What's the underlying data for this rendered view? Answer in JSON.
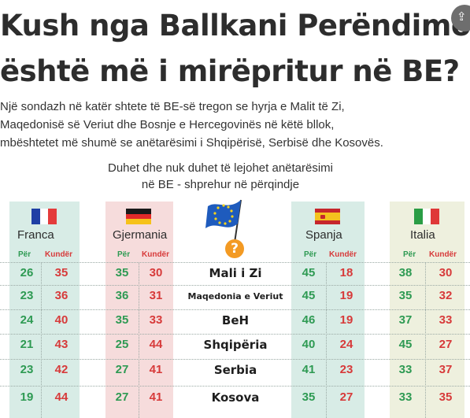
{
  "title": {
    "line1": "Kush nga Ballkani Perëndimor",
    "line2": "është më i mirëpritur në BE?"
  },
  "subtitle": {
    "line1": "Një sondazh në katër shtete të BE-së tregon se hyrja e Malit të Zi,",
    "line2": "Maqedonisë së Veriut dhe Bosnje e Hercegovinës në këtë bllok,",
    "line3": "mbështetet më shumë se anëtarësimi i Shqipërisë, Serbisë dhe Kosovës."
  },
  "chart_data": {
    "type": "table",
    "title": "Duhet dhe nuk duhet të lejohet anëtarësimi",
    "subtitle": "në BE - shprehur në përqindje",
    "column_headers": {
      "for": "Për",
      "against": "Kundër"
    },
    "countries": [
      "Franca",
      "Gjermania",
      "Spanja",
      "Italia"
    ],
    "rows": [
      {
        "label": "Mali i Zi",
        "Franca": [
          26,
          35
        ],
        "Gjermania": [
          35,
          30
        ],
        "Spanja": [
          45,
          18
        ],
        "Italia": [
          38,
          30
        ]
      },
      {
        "label": "Maqedonia e Veriut",
        "Franca": [
          23,
          36
        ],
        "Gjermania": [
          36,
          31
        ],
        "Spanja": [
          45,
          19
        ],
        "Italia": [
          35,
          32
        ]
      },
      {
        "label": "BeH",
        "Franca": [
          24,
          40
        ],
        "Gjermania": [
          35,
          33
        ],
        "Spanja": [
          46,
          19
        ],
        "Italia": [
          37,
          33
        ]
      },
      {
        "label": "Shqipëria",
        "Franca": [
          21,
          43
        ],
        "Gjermania": [
          25,
          44
        ],
        "Spanja": [
          40,
          24
        ],
        "Italia": [
          45,
          27
        ]
      },
      {
        "label": "Serbia",
        "Franca": [
          23,
          42
        ],
        "Gjermania": [
          27,
          41
        ],
        "Spanja": [
          41,
          23
        ],
        "Italia": [
          33,
          37
        ]
      },
      {
        "label": "Kosova",
        "Franca": [
          19,
          44
        ],
        "Gjermania": [
          27,
          41
        ],
        "Spanja": [
          35,
          27
        ],
        "Italia": [
          33,
          35
        ]
      }
    ]
  },
  "icons": {
    "share": "share-icon",
    "eu_flag": "eu-flag-icon",
    "question": "question-mark-icon"
  },
  "colors": {
    "for": "#2e9a53",
    "against": "#d73a3a",
    "accent": "#f39a23"
  }
}
